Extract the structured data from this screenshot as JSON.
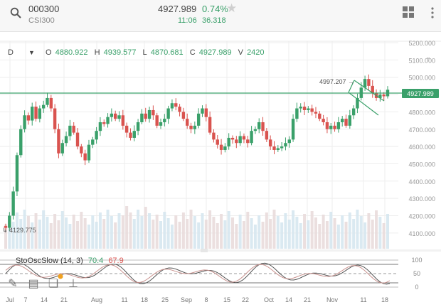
{
  "header": {
    "symbol": "000300",
    "name": "CSI300",
    "price": "4927.989",
    "change_pct": "0.74%",
    "time": "11:06",
    "change_abs": "36.318"
  },
  "ohlc": {
    "interval": "D",
    "open_label": "O",
    "open": "4880.922",
    "high_label": "H",
    "high": "4939.577",
    "low_label": "L",
    "low": "4870.681",
    "close_label": "C",
    "close": "4927.989",
    "volume_label": "V",
    "volume": "2420"
  },
  "price_axis": [
    "5200.000",
    "5100.000",
    "5000.000",
    "4927.989",
    "4800.000",
    "4700.000",
    "4600.000",
    "4500.000",
    "4400.000",
    "4300.000",
    "4200.000",
    "4100.000"
  ],
  "annotations": {
    "high_mark": "4997.207",
    "low_mark": "4129.775"
  },
  "time_axis": [
    "Jul",
    "7",
    "14",
    "21",
    "Aug",
    "11",
    "18",
    "25",
    "Sep",
    "8",
    "15",
    "22",
    "Oct",
    "14",
    "21",
    "Nov",
    "11",
    "18"
  ],
  "oscillator": {
    "name": "StoOscSlow (14, 3)",
    "k_value": "70.4",
    "d_value": "67.9",
    "axis": [
      "100",
      "50",
      "0"
    ]
  },
  "colors": {
    "up": "#3aa06a",
    "down": "#d9534f",
    "line": "#3aa06a",
    "grid": "#eeeeee"
  },
  "icons": [
    "search-icon",
    "grid-layout-icon",
    "more-vertical-icon",
    "star-icon",
    "pencil-icon",
    "calendar-icon",
    "layers-icon",
    "thumbtack-icon"
  ]
}
